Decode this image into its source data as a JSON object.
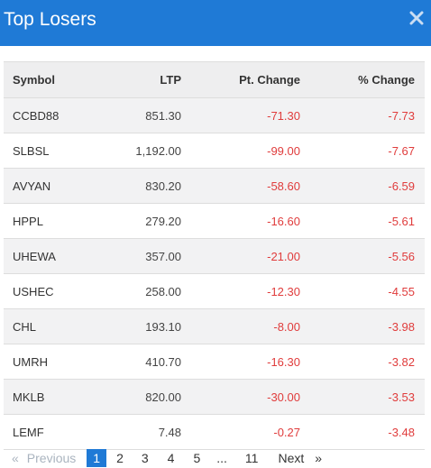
{
  "modal": {
    "title": "Top Losers"
  },
  "table": {
    "headers": [
      "Symbol",
      "LTP",
      "Pt. Change",
      "% Change"
    ],
    "rows": [
      {
        "symbol": "CCBD88",
        "ltp": "851.30",
        "pt_change": "-71.30",
        "pct_change": "-7.73"
      },
      {
        "symbol": "SLBSL",
        "ltp": "1,192.00",
        "pt_change": "-99.00",
        "pct_change": "-7.67"
      },
      {
        "symbol": "AVYAN",
        "ltp": "830.20",
        "pt_change": "-58.60",
        "pct_change": "-6.59"
      },
      {
        "symbol": "HPPL",
        "ltp": "279.20",
        "pt_change": "-16.60",
        "pct_change": "-5.61"
      },
      {
        "symbol": "UHEWA",
        "ltp": "357.00",
        "pt_change": "-21.00",
        "pct_change": "-5.56"
      },
      {
        "symbol": "USHEC",
        "ltp": "258.00",
        "pt_change": "-12.30",
        "pct_change": "-4.55"
      },
      {
        "symbol": "CHL",
        "ltp": "193.10",
        "pt_change": "-8.00",
        "pct_change": "-3.98"
      },
      {
        "symbol": "UMRH",
        "ltp": "410.70",
        "pt_change": "-16.30",
        "pct_change": "-3.82"
      },
      {
        "symbol": "MKLB",
        "ltp": "820.00",
        "pt_change": "-30.00",
        "pct_change": "-3.53"
      },
      {
        "symbol": "LEMF",
        "ltp": "7.48",
        "pt_change": "-0.27",
        "pct_change": "-3.48"
      }
    ]
  },
  "pagination": {
    "prev_arrow": "«",
    "prev_label": "Previous",
    "pages": [
      "1",
      "2",
      "3",
      "4",
      "5",
      "...",
      "11"
    ],
    "active_page": "1",
    "next_label": "Next",
    "next_arrow": "»"
  },
  "colors": {
    "header_bg": "#1f7ad6",
    "negative": "#e03c3c",
    "active_page_bg": "#1f7ad6"
  },
  "icons": {
    "close": "close-icon"
  }
}
